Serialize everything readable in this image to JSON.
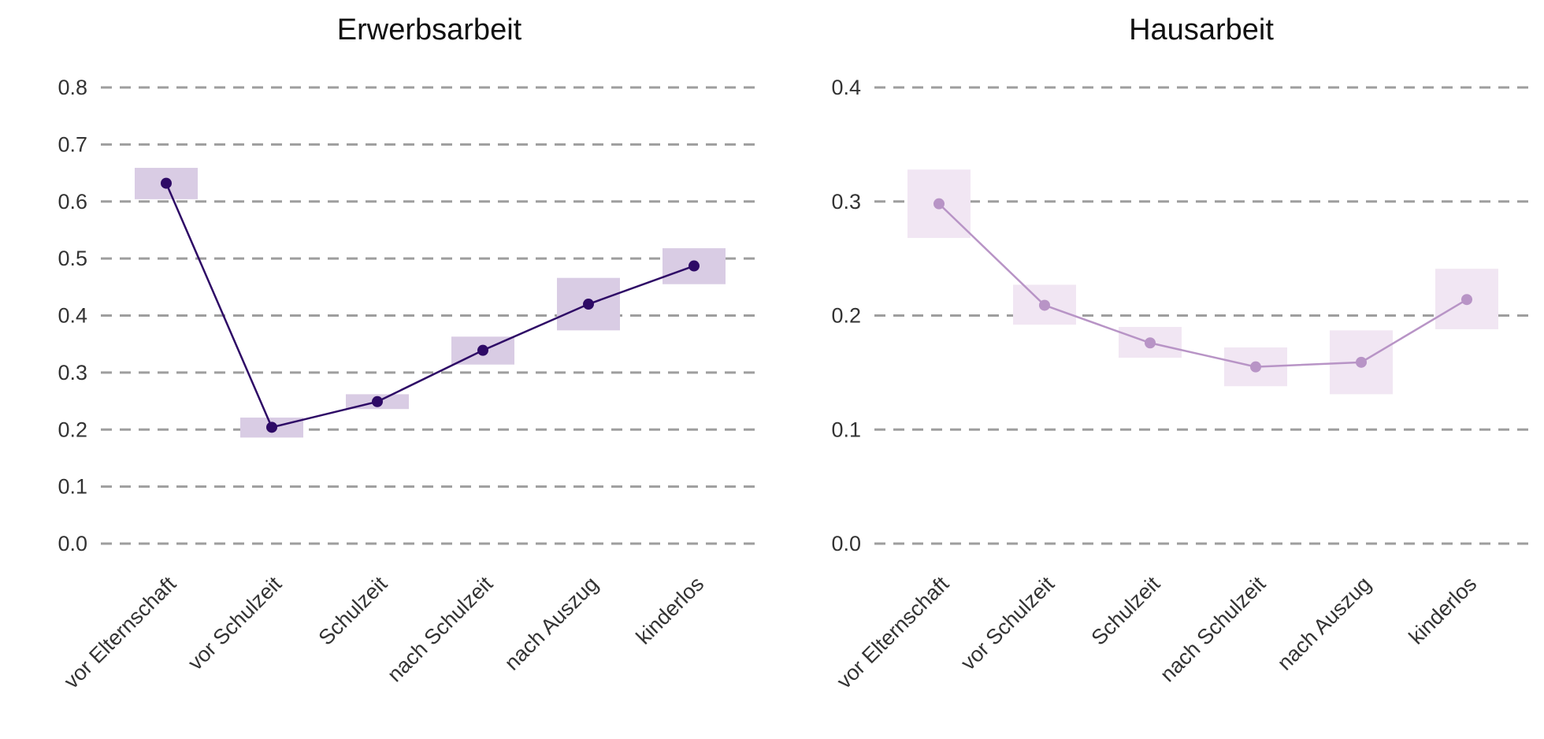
{
  "chart_data": [
    {
      "type": "line",
      "title": "Erwerbsarbeit",
      "xlabel": "",
      "ylabel": "",
      "categories": [
        "vor Elternschaft",
        "vor Schulzeit",
        "Schulzeit",
        "nach Schulzeit",
        "nach Auszug",
        "kinderlos"
      ],
      "yticks": [
        "0.0",
        "0.1",
        "0.2",
        "0.3",
        "0.4",
        "0.5",
        "0.6",
        "0.7",
        "0.8"
      ],
      "ylim": [
        0,
        0.8
      ],
      "grid": true,
      "series": [
        {
          "values": [
            0.632,
            0.204,
            0.249,
            0.339,
            0.42,
            0.487
          ],
          "ci_low": [
            0.604,
            0.186,
            0.236,
            0.314,
            0.374,
            0.455
          ],
          "ci_high": [
            0.659,
            0.221,
            0.262,
            0.363,
            0.466,
            0.518
          ],
          "color": "#2e0a66",
          "band_color": "#d9cce4"
        }
      ]
    },
    {
      "type": "line",
      "title": "Hausarbeit",
      "xlabel": "",
      "ylabel": "",
      "categories": [
        "vor Elternschaft",
        "vor Schulzeit",
        "Schulzeit",
        "nach Schulzeit",
        "nach Auszug",
        "kinderlos"
      ],
      "yticks": [
        "0.0",
        "0.1",
        "0.2",
        "0.3",
        "0.4"
      ],
      "ylim": [
        0,
        0.4
      ],
      "grid": true,
      "series": [
        {
          "values": [
            0.298,
            0.209,
            0.176,
            0.155,
            0.159,
            0.214
          ],
          "ci_low": [
            0.268,
            0.192,
            0.163,
            0.138,
            0.131,
            0.188
          ],
          "ci_high": [
            0.328,
            0.227,
            0.19,
            0.172,
            0.187,
            0.241
          ],
          "color": "#b894c6",
          "band_color": "#f1e6f3"
        }
      ]
    }
  ]
}
